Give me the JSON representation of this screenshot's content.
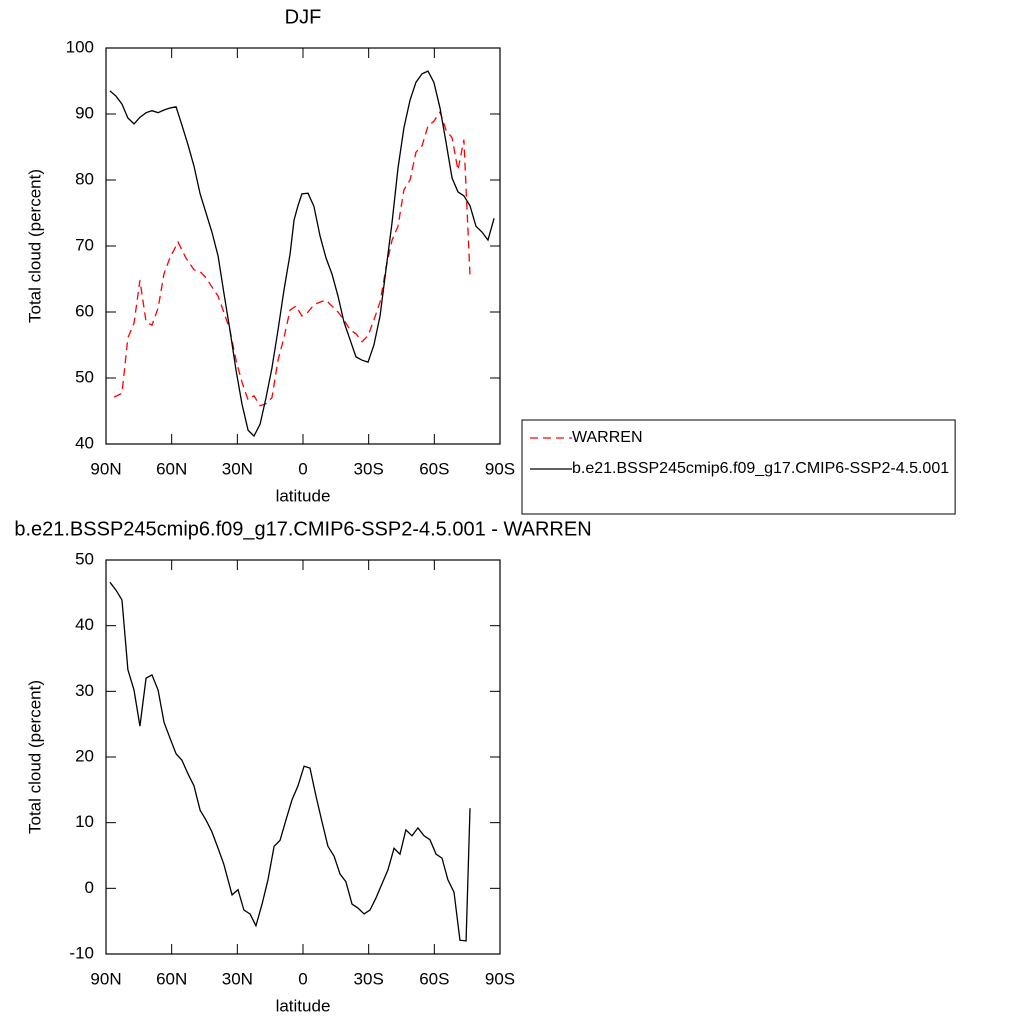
{
  "chart_data": [
    {
      "type": "line",
      "title": "DJF",
      "xlabel": "latitude",
      "ylabel": "Total cloud (percent)",
      "xlim": [
        90,
        -90
      ],
      "xticks": [
        {
          "value": 90,
          "label": "90N"
        },
        {
          "value": 60,
          "label": "60N"
        },
        {
          "value": 30,
          "label": "30N"
        },
        0,
        {
          "value": -30,
          "label": "30S"
        },
        {
          "value": -60,
          "label": "60S"
        },
        {
          "value": -90,
          "label": "90S"
        }
      ],
      "ylim": [
        40,
        100
      ],
      "yticks": [
        40,
        50,
        60,
        70,
        80,
        90,
        100
      ],
      "legend": "right",
      "series": [
        {
          "name": "WARREN",
          "color": "#ff0000",
          "dashed": true,
          "x": [
            86.3,
            82.7,
            80,
            77.2,
            74.5,
            71.7,
            69,
            66.2,
            63.5,
            60.8,
            57.1,
            53.5,
            49.8,
            47,
            44.3,
            41.6,
            38.8,
            36.2,
            33.4,
            30.6,
            27.9,
            25.1,
            22.4,
            19.6,
            16.9,
            14.2,
            11.4,
            8.7,
            5.9,
            3.2,
            0.5,
            -2.3,
            -5,
            -7.8,
            -10.5,
            -13.2,
            -16,
            -18.7,
            -21.5,
            -24.2,
            -27,
            -29.7,
            -32.4,
            -35.2,
            -37.9,
            -40.7,
            -43.4,
            -46.1,
            -48.9,
            -51.6,
            -54.4,
            -57.1,
            -59.8,
            -62.6,
            -65.3,
            -68.1,
            -70.8,
            -73.5,
            -76.3
          ],
          "values": [
            47.1,
            47.7,
            56.1,
            58.3,
            64.8,
            58.5,
            58,
            60.6,
            65.8,
            68.2,
            70.6,
            68.2,
            66.4,
            66.1,
            65.2,
            63.8,
            62.4,
            60,
            57.3,
            52.7,
            49.4,
            46.7,
            47.3,
            45.8,
            46.1,
            47,
            52.7,
            56.1,
            60.3,
            60.9,
            59.4,
            60,
            61.1,
            61.5,
            61.8,
            60.9,
            60,
            58.8,
            57.3,
            56.7,
            55.5,
            56.4,
            58.8,
            61.5,
            66.7,
            70.9,
            73,
            78.5,
            80,
            84.2,
            85.2,
            88.2,
            88.9,
            90.3,
            87.6,
            86.4,
            81.5,
            86.1,
            65.5
          ]
        },
        {
          "name": "b.e21.BSSP245cmip6.f09_g17.CMIP6-SSP2-4.5.001",
          "color": "#000000",
          "dashed": false,
          "x": [
            88.2,
            85.4,
            82.7,
            80,
            77.2,
            74.5,
            71.7,
            69,
            66.2,
            63.5,
            60.8,
            58,
            55.3,
            52.5,
            49.8,
            47,
            41.6,
            38.8,
            36.2,
            33.4,
            30.6,
            27.9,
            25.1,
            22.4,
            19.6,
            16.9,
            14.2,
            11.4,
            8.7,
            5.9,
            4.1,
            2.3,
            0.5,
            -2.3,
            -5,
            -7.8,
            -10.5,
            -13.2,
            -16,
            -18.7,
            -21.5,
            -24.2,
            -27,
            -29.7,
            -32.4,
            -35.2,
            -37.9,
            -40.7,
            -43.4,
            -46.1,
            -48.9,
            -51.6,
            -54.4,
            -57.1,
            -59.8,
            -62.6,
            -65.3,
            -68.1,
            -70.8,
            -73.5,
            -76.3,
            -79,
            -81.8,
            -84.5,
            -87.3
          ],
          "values": [
            93.5,
            92.7,
            91.5,
            89.4,
            88.5,
            89.5,
            90.2,
            90.5,
            90.2,
            90.6,
            90.9,
            91.1,
            88.3,
            85.3,
            82.1,
            77.9,
            72.1,
            68.5,
            63,
            57.3,
            51.2,
            46.1,
            42.1,
            41.2,
            43,
            47,
            51.5,
            57.3,
            63.3,
            68.8,
            73.9,
            76.1,
            77.9,
            78,
            76,
            71.5,
            68.2,
            65.8,
            62.4,
            58.5,
            55.8,
            53.2,
            52.7,
            52.4,
            55,
            59.4,
            66.4,
            73.6,
            81.8,
            87.9,
            92.1,
            94.8,
            96.1,
            96.5,
            94.8,
            90.9,
            85.8,
            80.3,
            78.2,
            77.6,
            76.1,
            73,
            72.1,
            70.9,
            74.2
          ]
        }
      ]
    },
    {
      "type": "line",
      "title": "b.e21.BSSP245cmip6.f09_g17.CMIP6-SSP2-4.5.001 - WARREN",
      "xlabel": "latitude",
      "ylabel": "Total cloud (percent)",
      "xlim": [
        90,
        -90
      ],
      "xticks": [
        {
          "value": 90,
          "label": "90N"
        },
        {
          "value": 60,
          "label": "60N"
        },
        {
          "value": 30,
          "label": "30N"
        },
        0,
        {
          "value": -30,
          "label": "30S"
        },
        {
          "value": -60,
          "label": "60S"
        },
        {
          "value": -90,
          "label": "90S"
        }
      ],
      "ylim": [
        -10,
        50
      ],
      "yticks": [
        -10,
        0,
        10,
        20,
        30,
        40,
        50
      ],
      "series": [
        {
          "color": "#000000",
          "dashed": false,
          "x": [
            88.2,
            85.4,
            82.7,
            80,
            77.2,
            74.5,
            71.7,
            69,
            66.2,
            63.5,
            60.8,
            58,
            55.3,
            52.5,
            49.8,
            47,
            44.3,
            41.6,
            38.8,
            36.2,
            32.4,
            29.7,
            27,
            24.2,
            21.5,
            18.7,
            16,
            13.2,
            10.5,
            7.8,
            5,
            2.3,
            -0.5,
            -3.2,
            -5.9,
            -8.7,
            -11.4,
            -14.2,
            -16.9,
            -19.6,
            -22.4,
            -25.1,
            -27.9,
            -30.6,
            -33.3,
            -36.1,
            -38.8,
            -41.6,
            -44.3,
            -47,
            -49.8,
            -52.5,
            -55.3,
            -58,
            -60.8,
            -63.5,
            -66.2,
            -69,
            -71.7,
            -74.5,
            -76.3
          ],
          "values": [
            46.6,
            45.4,
            43.9,
            33.3,
            30.2,
            24.7,
            32,
            32.5,
            30.2,
            25.3,
            22.9,
            20.5,
            19.5,
            17.4,
            15.6,
            11.9,
            10.4,
            8.6,
            6.1,
            3.7,
            -1,
            -0.2,
            -3.3,
            -3.9,
            -5.7,
            -2.4,
            1.3,
            6.4,
            7.3,
            10.4,
            13.5,
            15.6,
            18.6,
            18.3,
            14.1,
            10.1,
            6.4,
            4.9,
            2.2,
            1,
            -2.4,
            -3,
            -3.9,
            -3.3,
            -1.5,
            0.7,
            2.8,
            6.1,
            5.2,
            8.9,
            8,
            9.2,
            8,
            7.4,
            5.2,
            4.6,
            1.3,
            -0.6,
            -7.9,
            -8,
            12.2
          ]
        }
      ]
    }
  ]
}
